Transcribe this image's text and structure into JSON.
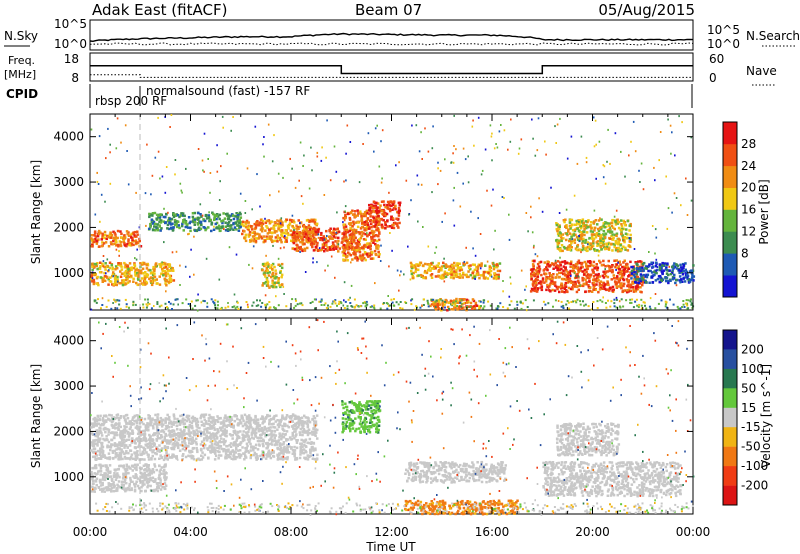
{
  "header": {
    "station": "Adak East (fitACF)",
    "beam": "Beam 07",
    "date": "05/Aug/2015"
  },
  "top_panels": {
    "nsky": {
      "label": "N.Sky",
      "y_ticks": [
        "10^5",
        "10^0"
      ],
      "right_ticks": [
        "10^5",
        "10^0"
      ],
      "right_label": "N.Search"
    },
    "freq": {
      "label": "Freq.",
      "unit": "[MHz]",
      "y_ticks": [
        "18",
        "8"
      ],
      "right_ticks": [
        "60",
        "0"
      ],
      "right_label": "Nave"
    },
    "cpid": {
      "label": "CPID",
      "annotations": [
        "rbsp 200 RF",
        "normalsound (fast) -157 RF"
      ]
    }
  },
  "x_axis": {
    "label": "Time UT",
    "ticks": [
      "00:00",
      "04:00",
      "08:00",
      "12:00",
      "16:00",
      "20:00",
      "00:00"
    ]
  },
  "power_panel": {
    "ylabel": "Slant Range [km]",
    "y_ticks": [
      "1000",
      "2000",
      "3000",
      "4000"
    ],
    "colorbar_label": "Power [dB]",
    "colorbar_ticks": [
      "4",
      "8",
      "12",
      "16",
      "20",
      "24",
      "28"
    ],
    "colors": [
      "#1414d2",
      "#1e5ab4",
      "#3c8c50",
      "#64b43c",
      "#f0c814",
      "#f08c14",
      "#f05014",
      "#e61414"
    ]
  },
  "velocity_panel": {
    "ylabel": "Slant Range [km]",
    "y_ticks": [
      "1000",
      "2000",
      "3000",
      "4000"
    ],
    "colorbar_label": "Velocity [m s^-1]",
    "colorbar_ticks": [
      "200",
      "100",
      "50",
      "15",
      "-15",
      "-50",
      "-100",
      "-200"
    ],
    "colors": [
      "#14148c",
      "#2850a0",
      "#287850",
      "#64c83c",
      "#c8c8c8",
      "#f0b414",
      "#f07814",
      "#f03c14",
      "#dc1414"
    ]
  },
  "chart_data": [
    {
      "type": "line",
      "title": "Adak East (fitACF)",
      "x": [
        "00:00",
        "02:00",
        "04:00",
        "06:00",
        "08:00",
        "10:00",
        "12:00",
        "14:00",
        "16:00",
        "18:00",
        "20:00",
        "22:00",
        "24:00"
      ],
      "series": [
        {
          "name": "N.Sky",
          "values": [
            20,
            60,
            90,
            150,
            150,
            500,
            400,
            300,
            300,
            40,
            40,
            40,
            40
          ]
        }
      ]
    },
    {
      "type": "line",
      "x": [
        "00:00",
        "02:00",
        "04:00",
        "06:00",
        "08:00",
        "10:00",
        "12:00",
        "14:00",
        "16:00",
        "18:00",
        "20:00",
        "22:00",
        "24:00"
      ],
      "series": [
        {
          "name": "Freq.",
          "values": [
            13.5,
            13.5,
            13.5,
            13.5,
            13.5,
            10.5,
            10.5,
            10.5,
            10.5,
            13.5,
            13.5,
            13.5,
            13.5
          ]
        },
        {
          "name": "Nave",
          "values": [
            12,
            6,
            6,
            6,
            6,
            6,
            6,
            6,
            6,
            6,
            6,
            6,
            6
          ]
        }
      ]
    },
    {
      "type": "heatmap",
      "title": "Power [dB]",
      "x_range_hours": [
        0,
        24
      ],
      "ylim": [
        180,
        4500
      ],
      "features": [
        {
          "t": [
            0,
            2
          ],
          "range": [
            1600,
            1950
          ],
          "value": 24
        },
        {
          "t": [
            0,
            3.3
          ],
          "range": [
            750,
            1250
          ],
          "value": 20
        },
        {
          "t": [
            2.3,
            6
          ],
          "range": [
            1950,
            2350
          ],
          "value": 10
        },
        {
          "t": [
            6,
            9
          ],
          "range": [
            1700,
            2200
          ],
          "value": 22
        },
        {
          "t": [
            6.8,
            7.6
          ],
          "range": [
            700,
            1250
          ],
          "value": 18
        },
        {
          "t": [
            8,
            10.5
          ],
          "range": [
            1500,
            2000
          ],
          "value": 26
        },
        {
          "t": [
            10,
            11.5
          ],
          "range": [
            1300,
            2400
          ],
          "value": 24
        },
        {
          "t": [
            11,
            12.3
          ],
          "range": [
            2000,
            2600
          ],
          "value": 28
        },
        {
          "t": [
            12.7,
            16.3
          ],
          "range": [
            900,
            1250
          ],
          "value": 20
        },
        {
          "t": [
            13.5,
            15.5
          ],
          "range": [
            200,
            450
          ],
          "value": 24
        },
        {
          "t": [
            17.5,
            22
          ],
          "range": [
            600,
            1300
          ],
          "value": 26
        },
        {
          "t": [
            18.5,
            21.5
          ],
          "range": [
            1500,
            2200
          ],
          "value": 18
        },
        {
          "t": [
            21.5,
            24
          ],
          "range": [
            800,
            1250
          ],
          "value": 6
        }
      ]
    },
    {
      "type": "heatmap",
      "title": "Velocity [m s^-1]",
      "x_range_hours": [
        0,
        24
      ],
      "ylim": [
        180,
        4500
      ],
      "features": [
        {
          "t": [
            0,
            9
          ],
          "range": [
            1400,
            2400
          ],
          "value": 0
        },
        {
          "t": [
            0,
            3
          ],
          "range": [
            700,
            1300
          ],
          "value": 0
        },
        {
          "t": [
            10,
            11.5
          ],
          "range": [
            2000,
            2700
          ],
          "value": 40
        },
        {
          "t": [
            12.5,
            16.5
          ],
          "range": [
            900,
            1350
          ],
          "value": 0
        },
        {
          "t": [
            12.5,
            17
          ],
          "range": [
            200,
            500
          ],
          "value": -60
        },
        {
          "t": [
            18,
            23.5
          ],
          "range": [
            600,
            1350
          ],
          "value": 0
        },
        {
          "t": [
            18.5,
            21
          ],
          "range": [
            1500,
            2200
          ],
          "value": 0
        }
      ]
    }
  ]
}
